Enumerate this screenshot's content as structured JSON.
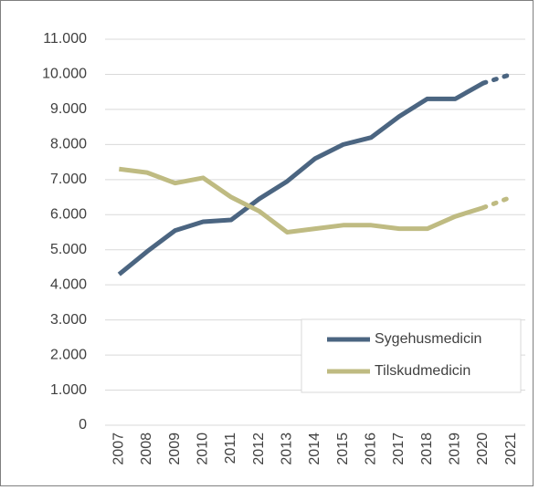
{
  "chart_data": {
    "type": "line",
    "categories": [
      "2007",
      "2008",
      "2009",
      "2010",
      "2011",
      "2012",
      "2013",
      "2014",
      "2015",
      "2016",
      "2017",
      "2018",
      "2019",
      "2020",
      "2021"
    ],
    "series": [
      {
        "name": "Sygehusmedicin",
        "color": "#4b6581",
        "values": [
          4300,
          4950,
          5550,
          5800,
          5850,
          6450,
          6950,
          7600,
          8000,
          8200,
          8800,
          9300,
          9300,
          9750,
          10000
        ]
      },
      {
        "name": "Tilskudmedicin",
        "color": "#bfbb82",
        "values": [
          7300,
          7200,
          6900,
          7050,
          6500,
          6100,
          5500,
          5600,
          5700,
          5700,
          5600,
          5600,
          5950,
          6200,
          6500
        ]
      }
    ],
    "dashed_last_segment": true,
    "ylim": [
      0,
      11000
    ],
    "yticks": [
      0,
      {
        "value": 1000,
        "label": "1.000"
      },
      {
        "value": 2000,
        "label": "2.000"
      },
      {
        "value": 3000,
        "label": "3.000"
      },
      {
        "value": 4000,
        "label": "4.000"
      },
      {
        "value": 5000,
        "label": "5.000"
      },
      {
        "value": 6000,
        "label": "6.000"
      },
      {
        "value": 7000,
        "label": "7.000"
      },
      {
        "value": 8000,
        "label": "8.000"
      },
      {
        "value": 9000,
        "label": "9.000"
      },
      {
        "value": 10000,
        "label": "10.000"
      },
      {
        "value": 11000,
        "label": "11.000"
      }
    ],
    "grid": true,
    "legend": "lower right"
  }
}
